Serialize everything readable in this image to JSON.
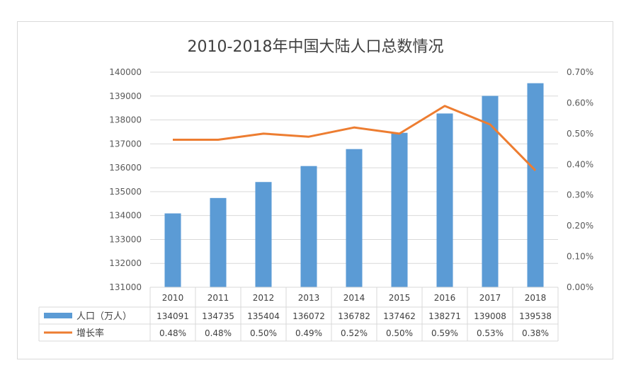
{
  "chart_data": {
    "type": "bar",
    "title": "2010-2018年中国大陆人口总数情况",
    "categories": [
      "2010",
      "2011",
      "2012",
      "2013",
      "2014",
      "2015",
      "2016",
      "2017",
      "2018"
    ],
    "series": [
      {
        "name": "人口（万人）",
        "type": "bar",
        "axis": "left",
        "color": "#5b9bd5",
        "values": [
          134091,
          134735,
          135404,
          136072,
          136782,
          137462,
          138271,
          139008,
          139538
        ]
      },
      {
        "name": "增长率",
        "type": "line",
        "axis": "right",
        "color": "#ed7d31",
        "values": [
          0.48,
          0.48,
          0.5,
          0.49,
          0.52,
          0.5,
          0.59,
          0.53,
          0.38
        ]
      }
    ],
    "left_axis": {
      "ylim": [
        131000,
        140000
      ],
      "ticks": [
        "131000",
        "132000",
        "133000",
        "134000",
        "135000",
        "136000",
        "137000",
        "138000",
        "139000",
        "140000"
      ]
    },
    "right_axis": {
      "ylim": [
        0,
        0.7
      ],
      "ticks": [
        "0.00%",
        "0.10%",
        "0.20%",
        "0.30%",
        "0.40%",
        "0.50%",
        "0.60%",
        "0.70%"
      ]
    },
    "table": {
      "rows": [
        {
          "label": "人口（万人）",
          "cells": [
            "134091",
            "134735",
            "135404",
            "136072",
            "136782",
            "137462",
            "138271",
            "139008",
            "139538"
          ]
        },
        {
          "label": "增长率",
          "cells": [
            "0.48%",
            "0.48%",
            "0.50%",
            "0.49%",
            "0.52%",
            "0.50%",
            "0.59%",
            "0.53%",
            "0.38%"
          ]
        }
      ]
    },
    "grid": true
  }
}
